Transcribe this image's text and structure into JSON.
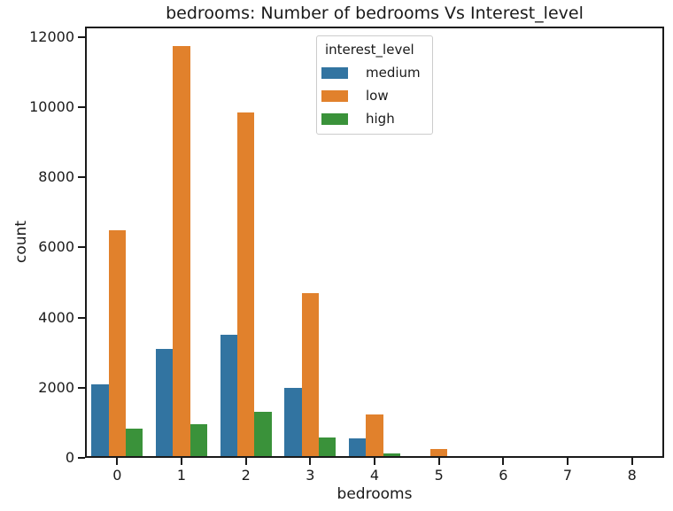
{
  "chart_data": {
    "type": "bar",
    "title": "bedrooms: Number of bedrooms Vs Interest_level",
    "xlabel": "bedrooms",
    "ylabel": "count",
    "categories": [
      "0",
      "1",
      "2",
      "3",
      "4",
      "5",
      "6",
      "7",
      "8"
    ],
    "series": [
      {
        "name": "medium",
        "color": "#3274a1",
        "values": [
          2100,
          3110,
          3510,
          1990,
          550,
          0,
          0,
          0,
          0
        ]
      },
      {
        "name": "low",
        "color": "#e1812c",
        "values": [
          6500,
          11750,
          9840,
          4700,
          1250,
          250,
          60,
          0,
          0
        ]
      },
      {
        "name": "high",
        "color": "#3a923a",
        "values": [
          840,
          970,
          1310,
          590,
          140,
          0,
          0,
          0,
          0
        ]
      }
    ],
    "ylim": [
      0,
      12300
    ],
    "yticks": [
      0,
      2000,
      4000,
      6000,
      8000,
      10000,
      12000
    ],
    "grid": false,
    "legend": {
      "title": "interest_level",
      "position": "upper center"
    },
    "spine_color": "#1a1a1a"
  }
}
